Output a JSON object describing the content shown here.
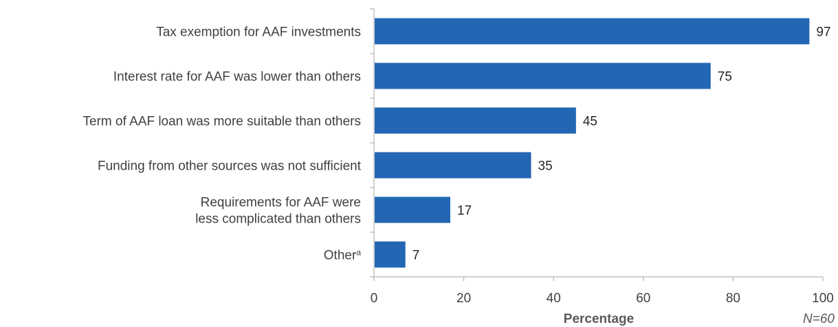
{
  "chart_data": {
    "type": "bar",
    "orientation": "horizontal",
    "categories": [
      [
        "Tax exemption for AAF investments"
      ],
      [
        "Interest rate for AAF was lower than others"
      ],
      [
        "Term of AAF loan was more suitable than others"
      ],
      [
        "Funding from other sources was not sufficient"
      ],
      [
        "Requirements for AAF were",
        "less complicated than others"
      ],
      [
        "Other"
      ]
    ],
    "category_superscripts": [
      "",
      "",
      "",
      "",
      "",
      "a"
    ],
    "values": [
      97,
      75,
      45,
      35,
      17,
      7
    ],
    "xlabel": "Percentage",
    "xlim": [
      0,
      100
    ],
    "xticks": [
      0,
      20,
      40,
      60,
      80,
      100
    ],
    "note": "N=60",
    "bar_color": "#2266b4",
    "grid": false
  }
}
